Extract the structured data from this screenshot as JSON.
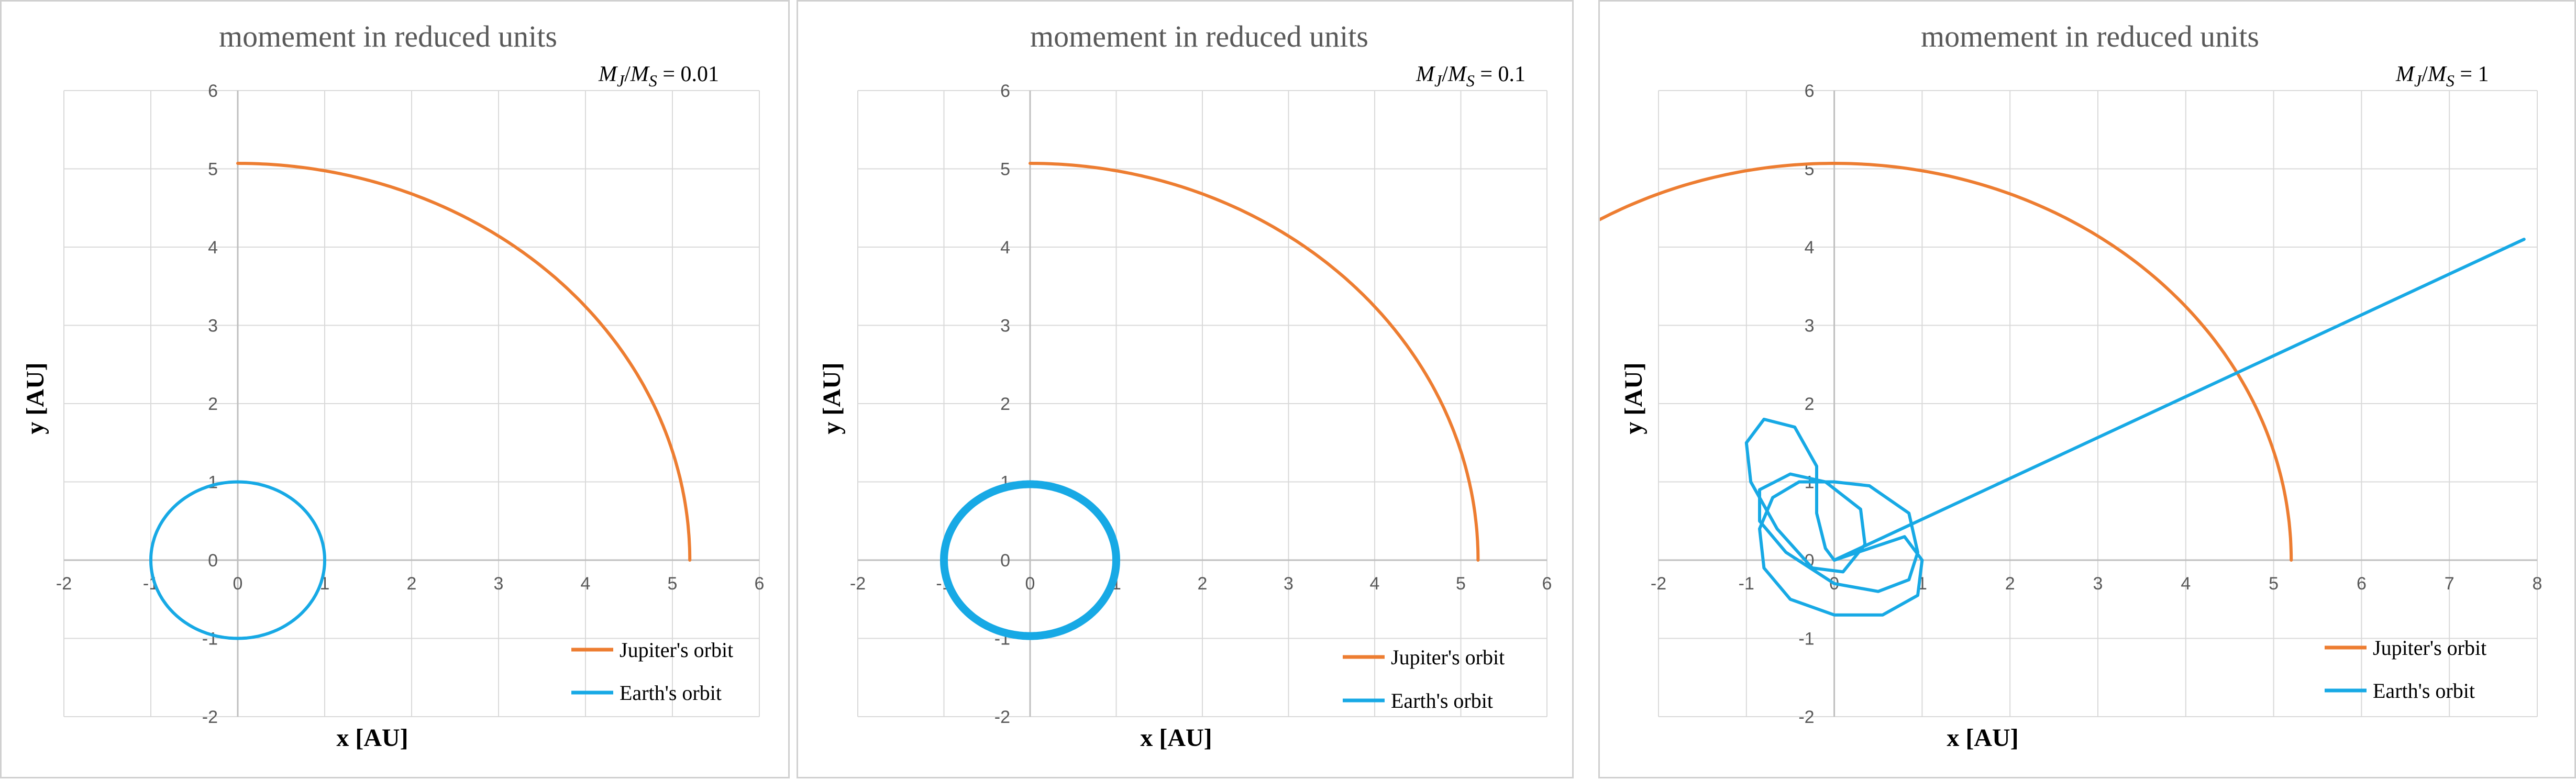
{
  "chart_data": [
    {
      "type": "line",
      "title": "momement in reduced units",
      "annotation": {
        "lhs": "M",
        "lhs_sub": "J",
        "sep": "/",
        "rhs": "M",
        "rhs_sub": "S",
        "eq": " = 0.01"
      },
      "xlabel": "x [AU]",
      "ylabel": "y [AU]",
      "xlim": [
        -2,
        6
      ],
      "ylim": [
        -2,
        6
      ],
      "xticks": [
        "-2",
        "-1",
        "0",
        "1",
        "2",
        "3",
        "4",
        "5",
        "6"
      ],
      "yticks": [
        "-2",
        "-1",
        "0",
        "1",
        "2",
        "3",
        "4",
        "5",
        "6"
      ],
      "grid": true,
      "legend_position": "bottom-right",
      "series": [
        {
          "name": "Jupiter's orbit",
          "color": "#ED7D31",
          "kind": "arc",
          "cx": 0,
          "cy": 0,
          "rx": 5.2,
          "ry": 5.07,
          "a0": 0,
          "a1": 90,
          "points": [
            [
              0.1,
              5.07
            ],
            [
              1.3,
              4.95
            ],
            [
              2.6,
              4.52
            ],
            [
              3.68,
              3.6
            ],
            [
              4.5,
              2.55
            ],
            [
              5.0,
              1.4
            ],
            [
              5.2,
              0
            ]
          ]
        },
        {
          "name": "Earth's orbit",
          "color": "#17A9E5",
          "kind": "ellipse",
          "cx": 0,
          "cy": 0,
          "rx": 1.0,
          "ry": 1.0,
          "width": 6,
          "points": [
            [
              1,
              0
            ],
            [
              0,
              1
            ],
            [
              -1,
              0
            ],
            [
              0,
              -1
            ],
            [
              1,
              0
            ]
          ]
        }
      ]
    },
    {
      "type": "line",
      "title": "momement in reduced units",
      "annotation": {
        "lhs": "M",
        "lhs_sub": "J",
        "sep": "/",
        "rhs": "M",
        "rhs_sub": "S",
        "eq": " = 0.1"
      },
      "xlabel": "x [AU]",
      "ylabel": "y [AU]",
      "xlim": [
        -2,
        6
      ],
      "ylim": [
        -2,
        6
      ],
      "xticks": [
        "-2",
        "-1",
        "0",
        "1",
        "2",
        "3",
        "4",
        "5",
        "6"
      ],
      "yticks": [
        "-2",
        "-1",
        "0",
        "1",
        "2",
        "3",
        "4",
        "5",
        "6"
      ],
      "grid": true,
      "legend_position": "bottom-right",
      "series": [
        {
          "name": "Jupiter's orbit",
          "color": "#ED7D31",
          "kind": "arc",
          "cx": 0,
          "cy": 0,
          "rx": 5.2,
          "ry": 5.07,
          "a0": 0,
          "a1": 90,
          "points": [
            [
              0.1,
              5.07
            ],
            [
              1.3,
              4.95
            ],
            [
              2.6,
              4.52
            ],
            [
              3.68,
              3.6
            ],
            [
              4.5,
              2.55
            ],
            [
              5.0,
              1.4
            ],
            [
              5.2,
              0
            ]
          ]
        },
        {
          "name": "Earth's orbit",
          "color": "#17A9E5",
          "kind": "ellipse",
          "cx": 0,
          "cy": 0,
          "rx": 1.0,
          "ry": 0.97,
          "width": 15,
          "points": [
            [
              1,
              0
            ],
            [
              0,
              1
            ],
            [
              -1,
              0
            ],
            [
              0,
              -0.97
            ],
            [
              0.9,
              0.33
            ]
          ]
        }
      ]
    },
    {
      "type": "line",
      "title": "momement in reduced units",
      "annotation": {
        "lhs": "M",
        "lhs_sub": "J",
        "sep": "/",
        "rhs": "M",
        "rhs_sub": "S",
        "eq": " = 1"
      },
      "xlabel": "x [AU]",
      "ylabel": "y [AU]",
      "xlim": [
        -2,
        8
      ],
      "ylim": [
        -2,
        6
      ],
      "xticks": [
        "-2",
        "-1",
        "0",
        "1",
        "2",
        "3",
        "4",
        "5",
        "6",
        "7",
        "8"
      ],
      "yticks": [
        "-2",
        "-1",
        "0",
        "1",
        "2",
        "3",
        "4",
        "5",
        "6"
      ],
      "grid": true,
      "legend_position": "bottom-right",
      "series": [
        {
          "name": "Jupiter's orbit",
          "color": "#ED7D31",
          "kind": "arc",
          "cx": 0,
          "cy": 0,
          "rx": 5.2,
          "ry": 5.07,
          "a0": 0,
          "a1": 157,
          "points": [
            [
              -2.0,
              4.6
            ],
            [
              0.1,
              5.07
            ],
            [
              2.6,
              4.52
            ],
            [
              4.5,
              2.55
            ],
            [
              5.2,
              0
            ]
          ]
        },
        {
          "name": "Earth's orbit",
          "color": "#17A9E5",
          "kind": "path",
          "width": 6,
          "points": [
            [
              0,
              0
            ],
            [
              0.8,
              0.3
            ],
            [
              1.0,
              0
            ],
            [
              0.95,
              -0.45
            ],
            [
              0.55,
              -0.7
            ],
            [
              0,
              -0.7
            ],
            [
              -0.5,
              -0.5
            ],
            [
              -0.8,
              -0.1
            ],
            [
              -0.85,
              0.4
            ],
            [
              -0.7,
              0.8
            ],
            [
              -0.4,
              1.0
            ],
            [
              0,
              1.0
            ],
            [
              0.4,
              0.95
            ],
            [
              0.85,
              0.6
            ],
            [
              0.95,
              0.1
            ],
            [
              0.85,
              -0.25
            ],
            [
              0.5,
              -0.4
            ],
            [
              0,
              -0.3
            ],
            [
              -0.55,
              0.1
            ],
            [
              -0.85,
              0.5
            ],
            [
              -0.85,
              0.9
            ],
            [
              -0.5,
              1.1
            ],
            [
              -0.1,
              1.0
            ],
            [
              0.3,
              0.65
            ],
            [
              0.35,
              0.2
            ],
            [
              0.1,
              -0.15
            ],
            [
              -0.25,
              -0.1
            ],
            [
              -0.65,
              0.4
            ],
            [
              -0.95,
              1.0
            ],
            [
              -1.0,
              1.5
            ],
            [
              -0.8,
              1.8
            ],
            [
              -0.45,
              1.7
            ],
            [
              -0.2,
              1.2
            ],
            [
              -0.2,
              0.6
            ],
            [
              -0.1,
              0.15
            ],
            [
              0,
              0
            ],
            [
              7.85,
              4.1
            ]
          ]
        }
      ]
    }
  ]
}
